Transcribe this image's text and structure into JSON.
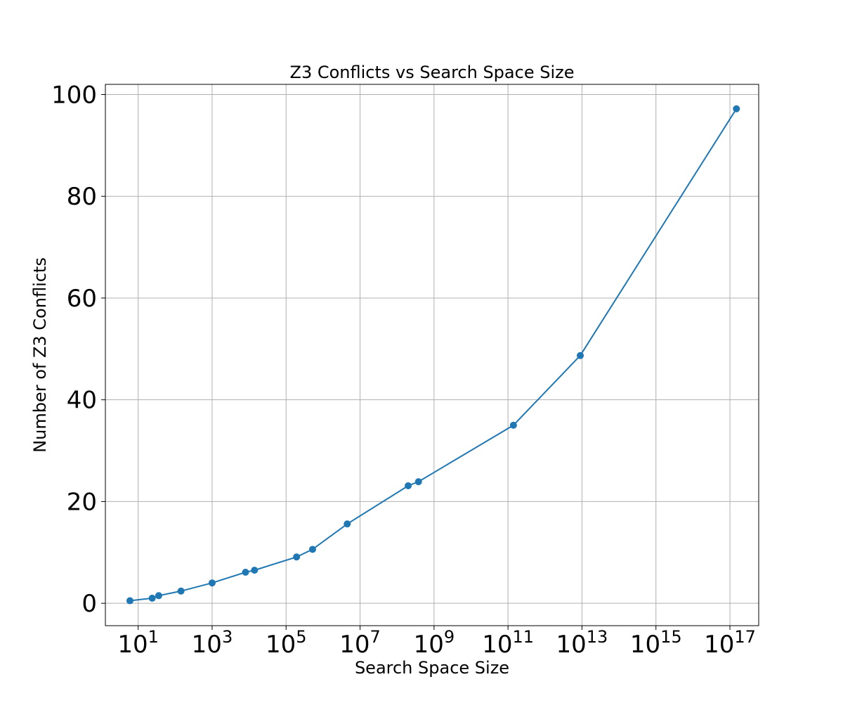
{
  "chart_data": {
    "type": "line",
    "title": "Z3 Conflicts vs Search Space Size",
    "xlabel": "Search Space Size",
    "ylabel": "Number of Z3 Conflicts",
    "x_scale": "log",
    "xlim": [
      1.3,
      600000000000000000
    ],
    "ylim": [
      -4.4,
      102
    ],
    "x_tick_labels": [
      {
        "base": "10",
        "exp": "1"
      },
      {
        "base": "10",
        "exp": "3"
      },
      {
        "base": "10",
        "exp": "5"
      },
      {
        "base": "10",
        "exp": "7"
      },
      {
        "base": "10",
        "exp": "9"
      },
      {
        "base": "10",
        "exp": "11"
      },
      {
        "base": "10",
        "exp": "13"
      },
      {
        "base": "10",
        "exp": "15"
      },
      {
        "base": "10",
        "exp": "17"
      }
    ],
    "x_ticks": [
      10,
      1000,
      100000,
      10000000,
      1000000000,
      100000000000,
      10000000000000,
      1000000000000000,
      100000000000000000
    ],
    "y_ticks": [
      0,
      20,
      40,
      60,
      80,
      100
    ],
    "grid": true,
    "color": "#1f77b4",
    "series": [
      {
        "x": [
          6,
          24,
          36,
          144,
          1000,
          8000,
          14000,
          192000,
          520000,
          4500000,
          200000000,
          380000000,
          140000000000,
          9000000000000,
          150000000000000000
        ],
        "y": [
          0.5,
          1.0,
          1.5,
          2.4,
          4.0,
          6.1,
          6.5,
          9.1,
          10.6,
          15.6,
          23.1,
          23.9,
          35.0,
          48.7,
          97.2
        ]
      }
    ]
  }
}
